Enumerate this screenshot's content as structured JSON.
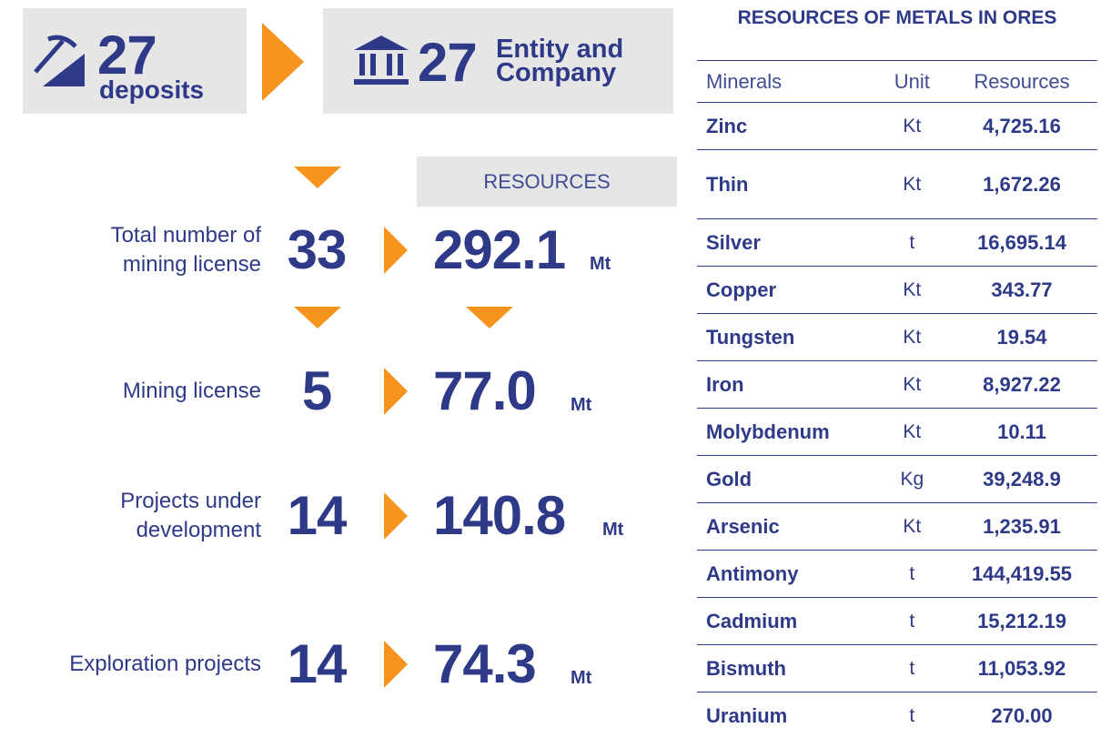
{
  "header": {
    "deposits": {
      "value": "27",
      "label": "deposits"
    },
    "entities": {
      "value": "27",
      "label": "Entity and Company"
    }
  },
  "summary": {
    "resources_header": "RESOURCES",
    "rows": [
      {
        "label": "Total number of mining license",
        "count": "33",
        "resources": "292.1",
        "unit": "Mt"
      },
      {
        "label": "Mining license",
        "count": "5",
        "resources": "77.0",
        "unit": "Mt"
      },
      {
        "label": "Projects under development",
        "count": "14",
        "resources": "140.8",
        "unit": "Mt"
      },
      {
        "label": "Exploration projects",
        "count": "14",
        "resources": "74.3",
        "unit": "Mt"
      }
    ]
  },
  "table": {
    "title": "RESOURCES OF METALS IN ORES",
    "columns": [
      "Minerals",
      "Unit",
      "Resources"
    ],
    "rows": [
      [
        "Zinc",
        "Kt",
        "4,725.16"
      ],
      [
        "Thin",
        "Kt",
        "1,672.26"
      ],
      [
        "Silver",
        "t",
        "16,695.14"
      ],
      [
        "Copper",
        "Kt",
        "343.77"
      ],
      [
        "Tungsten",
        "Kt",
        "19.54"
      ],
      [
        "Iron",
        "Kt",
        "8,927.22"
      ],
      [
        "Molybdenum",
        "Kt",
        "10.11"
      ],
      [
        "Gold",
        "Kg",
        "39,248.9"
      ],
      [
        "Arsenic",
        "Kt",
        "1,235.91"
      ],
      [
        "Antimony",
        "t",
        "144,419.55"
      ],
      [
        "Cadmium",
        "t",
        "15,212.19"
      ],
      [
        "Bismuth",
        "t",
        "11,053.92"
      ],
      [
        "Uranium",
        "t",
        "270.00"
      ]
    ]
  }
}
